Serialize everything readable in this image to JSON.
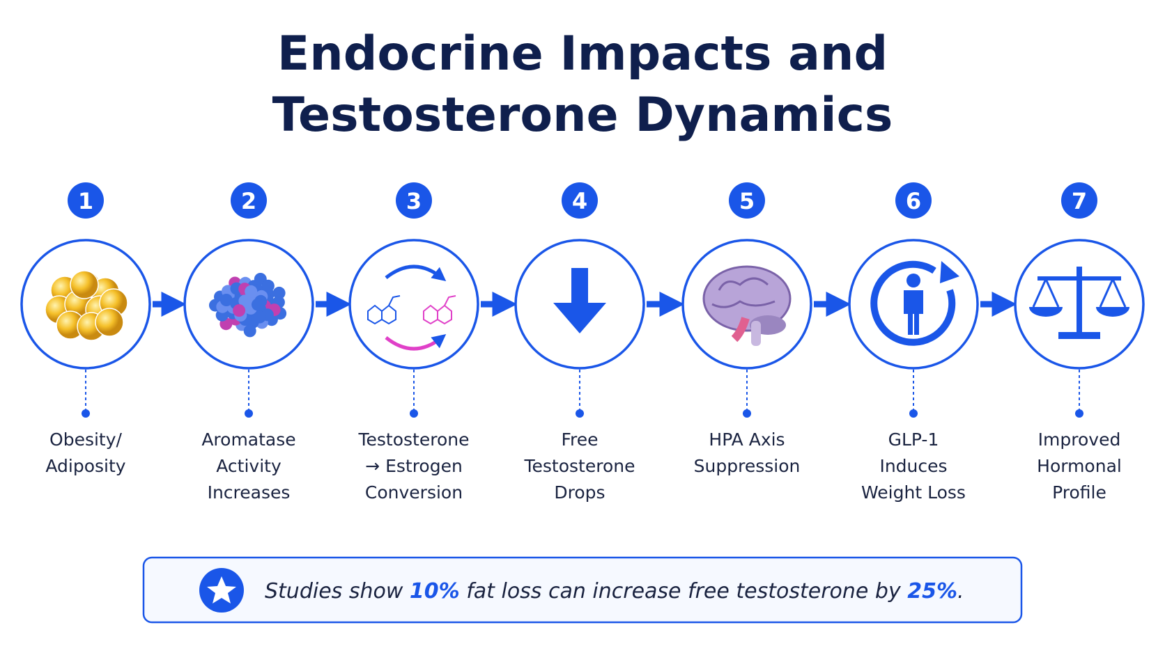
{
  "title": "Endocrine Impacts and Testosterone Dynamics",
  "steps": [
    {
      "number": "1",
      "label_lines": [
        "Obesity/",
        "Adiposity"
      ]
    },
    {
      "number": "2",
      "label_lines": [
        "Aromatase",
        "Activity",
        "Increases"
      ]
    },
    {
      "number": "3",
      "label_lines": [
        "Testosterone",
        "→ Estrogen",
        "Conversion"
      ]
    },
    {
      "number": "4",
      "label_lines": [
        "Free",
        "Testosterone",
        "Drops"
      ]
    },
    {
      "number": "5",
      "label_lines": [
        "HPA Axis",
        "Suppression"
      ]
    },
    {
      "number": "6",
      "label_lines": [
        "GLP-1",
        "Induces",
        "Weight Loss"
      ]
    },
    {
      "number": "7",
      "label_lines": [
        "Improved",
        "Hormonal",
        "Profile"
      ]
    }
  ],
  "callout": {
    "segments": [
      "Studies show ",
      "10%",
      " fat loss can increase free testosterone by ",
      "25%",
      "."
    ]
  }
}
